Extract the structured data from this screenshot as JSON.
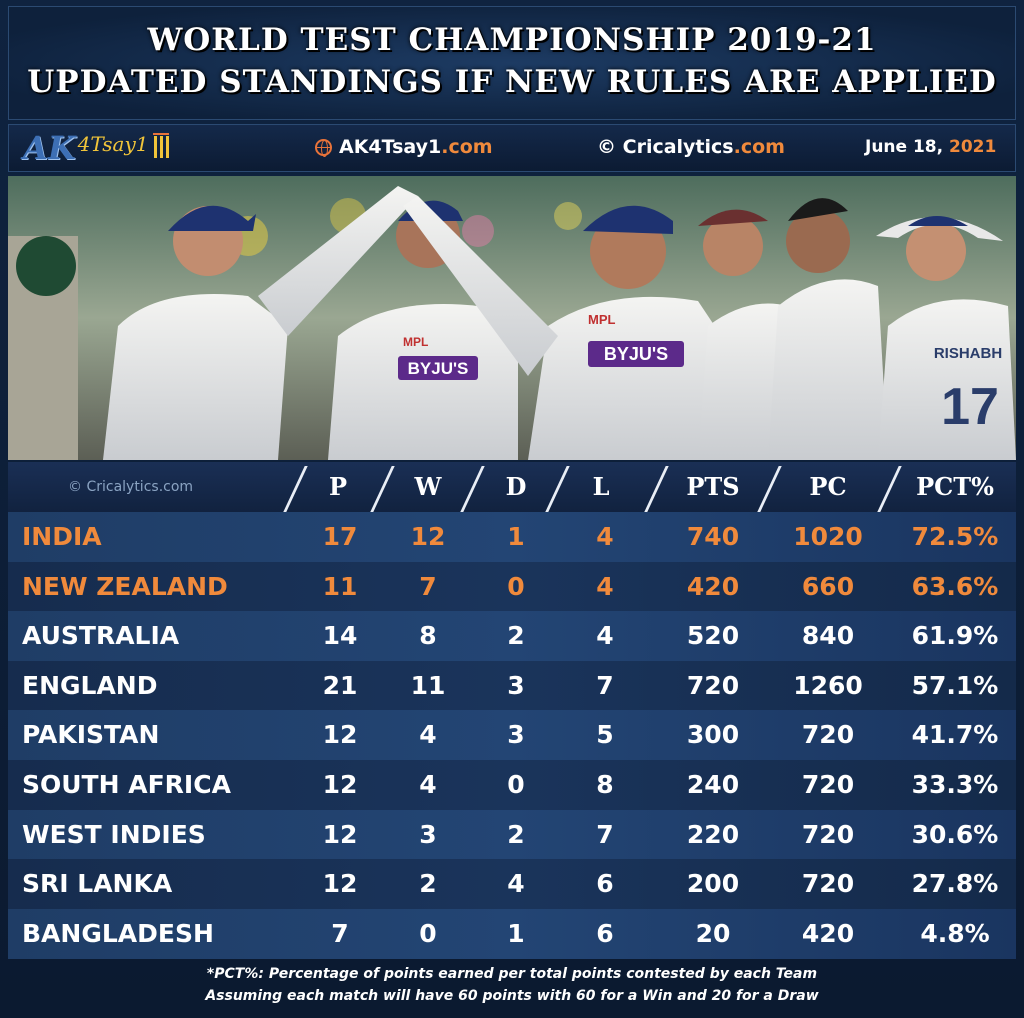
{
  "title": {
    "line1": "WORLD TEST CHAMPIONSHIP 2019-21",
    "line2": "UPDATED STANDINGS IF NEW RULES ARE APPLIED"
  },
  "credits": {
    "logo_text_ak": "AK",
    "logo_text_tsay": "4Tsay1",
    "site_name": "AK4Tsay1",
    "site_tld": ".com",
    "copyright_symbol": "©",
    "copyright_name": "Cricalytics",
    "copyright_tld": ".com",
    "date_prefix": "June 18, ",
    "date_year": "2021"
  },
  "photo": {
    "jersey_sponsor": "BYJU'S",
    "jersey_kit": "MPL",
    "jersey_name": "RISHABH",
    "jersey_number": "17"
  },
  "table": {
    "watermark": "© Cricalytics.com",
    "headers": [
      "P",
      "W",
      "D",
      "L",
      "PTS",
      "PC",
      "PCT%"
    ],
    "rows": [
      {
        "team": "INDIA",
        "p": "17",
        "w": "12",
        "d": "1",
        "l": "4",
        "pts": "740",
        "pc": "1020",
        "pct": "72.5%"
      },
      {
        "team": "NEW ZEALAND",
        "p": "11",
        "w": "7",
        "d": "0",
        "l": "4",
        "pts": "420",
        "pc": "660",
        "pct": "63.6%"
      },
      {
        "team": "AUSTRALIA",
        "p": "14",
        "w": "8",
        "d": "2",
        "l": "4",
        "pts": "520",
        "pc": "840",
        "pct": "61.9%"
      },
      {
        "team": "ENGLAND",
        "p": "21",
        "w": "11",
        "d": "3",
        "l": "7",
        "pts": "720",
        "pc": "1260",
        "pct": "57.1%"
      },
      {
        "team": "PAKISTAN",
        "p": "12",
        "w": "4",
        "d": "3",
        "l": "5",
        "pts": "300",
        "pc": "720",
        "pct": "41.7%"
      },
      {
        "team": "SOUTH AFRICA",
        "p": "12",
        "w": "4",
        "d": "0",
        "l": "8",
        "pts": "240",
        "pc": "720",
        "pct": "33.3%"
      },
      {
        "team": "WEST INDIES",
        "p": "12",
        "w": "3",
        "d": "2",
        "l": "7",
        "pts": "220",
        "pc": "720",
        "pct": "30.6%"
      },
      {
        "team": "SRI LANKA",
        "p": "12",
        "w": "2",
        "d": "4",
        "l": "6",
        "pts": "200",
        "pc": "720",
        "pct": "27.8%"
      },
      {
        "team": "BANGLADESH",
        "p": "7",
        "w": "0",
        "d": "1",
        "l": "6",
        "pts": "20",
        "pc": "420",
        "pct": "4.8%"
      }
    ],
    "highlighted_teams": [
      "INDIA",
      "NEW ZEALAND"
    ],
    "highlight_color": "#f08a3c"
  },
  "footnote": {
    "line1": "*PCT%: Percentage of points earned per total points contested by each Team",
    "line2": "Assuming each match will have 60 points with 60 for a Win and 20 for a Draw"
  }
}
